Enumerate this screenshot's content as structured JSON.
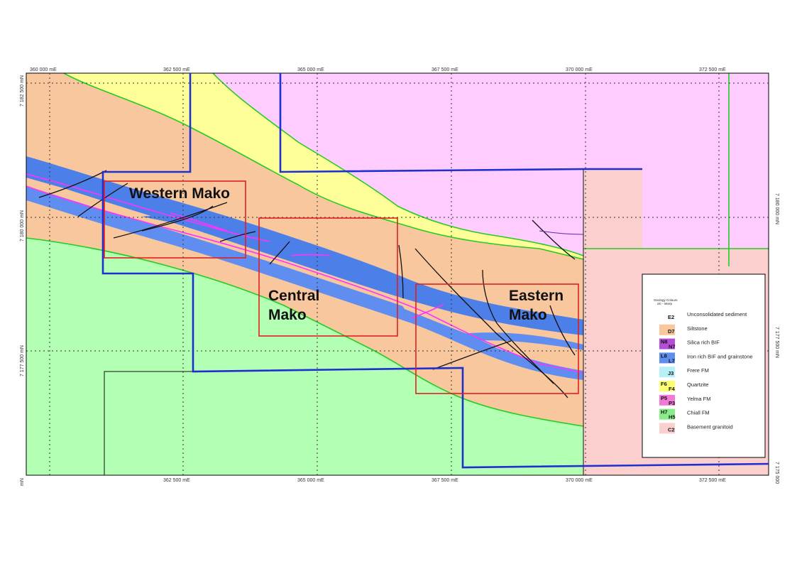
{
  "map": {
    "top_ticks": [
      "360 000 mE",
      "362 500 mE",
      "365 000 mE",
      "367 500 mE",
      "370 000 mE",
      "372 500 mE"
    ],
    "bottom_ticks": [
      "362 500 mE",
      "365 000 mE",
      "367 500 mE",
      "370 000 mE",
      "372 500 mE"
    ],
    "left_ticks": [
      "7 182 500 mN",
      "7 180 000 mN",
      "7 177 500 mN"
    ],
    "right_ticks": [
      "7 180 000 mN",
      "7 177 500 mN"
    ],
    "corner_bottom_left": "mN",
    "corner_bottom_right": "7 175 000"
  },
  "regions": {
    "western": "Western Mako",
    "central_line1": "Central",
    "central_line2": "Mako",
    "eastern_line1": "Eastern",
    "eastern_line2": "Mako"
  },
  "legend": {
    "title_line1": "Geology Colours",
    "title_line2": "olc - interp",
    "items": [
      {
        "codes": [
          "E2"
        ],
        "label": "Unconsolidated sediment",
        "color": "#ffffff"
      },
      {
        "codes": [
          "D7"
        ],
        "label": "Siltstone",
        "color": "#f8c79c"
      },
      {
        "codes": [
          "N8",
          "N7"
        ],
        "label": "Silica rich BIF",
        "color": "#b44ed8"
      },
      {
        "codes": [
          "L8",
          "L7"
        ],
        "label": "Iron rich BIF and grainstone",
        "color": "#5f8ef0"
      },
      {
        "codes": [
          "J3"
        ],
        "label": "Frere FM",
        "color": "#b8f0f8"
      },
      {
        "codes": [
          "F6",
          "F4"
        ],
        "label": "Quartzite",
        "color": "#fdfd70"
      },
      {
        "codes": [
          "P5",
          "P3"
        ],
        "label": "Yelma FM",
        "color": "#f279d6"
      },
      {
        "codes": [
          "H7",
          "H5"
        ],
        "label": "Chiall FM",
        "color": "#88ec88"
      },
      {
        "codes": [
          "C2"
        ],
        "label": "Basement granitoid",
        "color": "#fccfcf"
      }
    ]
  },
  "colors": {
    "pink_basement": "#ffccff",
    "granitoid": "#fccfcf",
    "quartzite": "#ffff99",
    "siltstone": "#f9c79e",
    "green_fm": "#b3ffb3",
    "iron_bif": "#5f8ef0",
    "silica_bif": "#3f7fb0",
    "yelma_line": "#ff33ff",
    "tenement_boundary": "#1f2fd0",
    "prospect_box": "#e02020",
    "contact_line": "#22cc22"
  }
}
